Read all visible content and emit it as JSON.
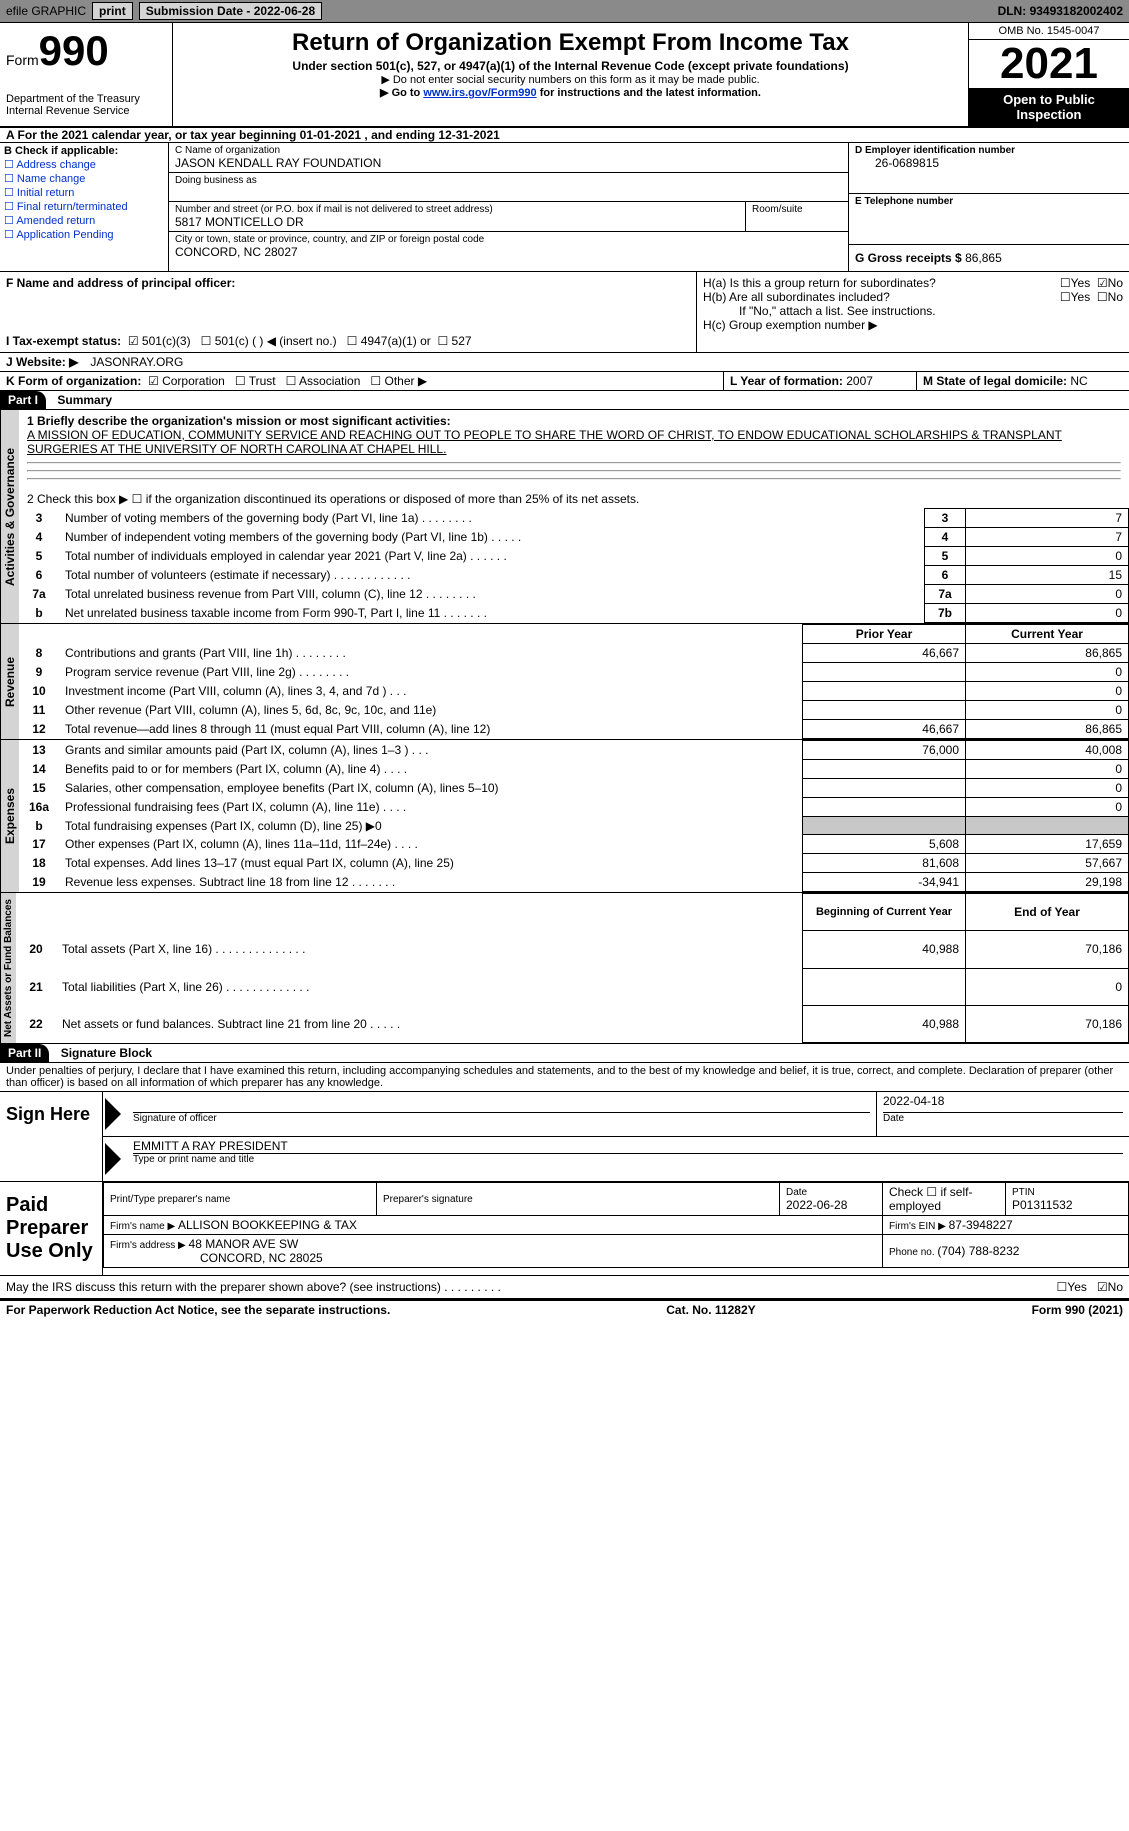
{
  "topbar": {
    "efile": "efile GRAPHIC",
    "print": "print",
    "submission_label": "Submission Date - ",
    "submission_date": "2022-06-28",
    "dln_label": "DLN: ",
    "dln": "93493182002402"
  },
  "header": {
    "form_label": "Form",
    "form_number": "990",
    "dept": "Department of the Treasury",
    "irs": "Internal Revenue Service",
    "title": "Return of Organization Exempt From Income Tax",
    "subtitle": "Under section 501(c), 527, or 4947(a)(1) of the Internal Revenue Code (except private foundations)",
    "note1": "▶ Do not enter social security numbers on this form as it may be made public.",
    "note2_pre": "▶ Go to ",
    "note2_link": "www.irs.gov/Form990",
    "note2_post": " for instructions and the latest information.",
    "omb": "OMB No. 1545-0047",
    "year": "2021",
    "inspect": "Open to Public Inspection"
  },
  "sectionA": {
    "text": "A For the 2021 calendar year, or tax year beginning ",
    "begin": "01-01-2021",
    "mid": " , and ending ",
    "end": "12-31-2021"
  },
  "blockB": {
    "title": "B Check if applicable:",
    "opts": [
      "Address change",
      "Name change",
      "Initial return",
      "Final return/terminated",
      "Amended return",
      "Application Pending"
    ]
  },
  "blockC": {
    "name_label": "C Name of organization",
    "name": "JASON KENDALL RAY FOUNDATION",
    "dba_label": "Doing business as",
    "addr_label": "Number and street (or P.O. box if mail is not delivered to street address)",
    "room_label": "Room/suite",
    "addr": "5817 MONTICELLO DR",
    "city_label": "City or town, state or province, country, and ZIP or foreign postal code",
    "city": "CONCORD, NC  28027"
  },
  "blockD": {
    "ein_label": "D Employer identification number",
    "ein": "26-0689815",
    "phone_label": "E Telephone number",
    "gross_label": "G Gross receipts $ ",
    "gross": "86,865"
  },
  "blockF": {
    "label": "F Name and address of principal officer:"
  },
  "blockH": {
    "a": "H(a)  Is this a group return for subordinates?",
    "b": "H(b)  Are all subordinates included?",
    "b_note": "If \"No,\" attach a list. See instructions.",
    "c": "H(c)  Group exemption number ▶",
    "yes": "Yes",
    "no": "No"
  },
  "taxexempt": {
    "label": "I   Tax-exempt status:",
    "opt1": "501(c)(3)",
    "opt2": "501(c) (  ) ◀ (insert no.)",
    "opt3": "4947(a)(1) or",
    "opt4": "527"
  },
  "website": {
    "label": "J   Website: ▶",
    "value": "JASONRAY.ORG"
  },
  "blockK": {
    "label": "K Form of organization:",
    "corp": "Corporation",
    "trust": "Trust",
    "assoc": "Association",
    "other": "Other ▶"
  },
  "blockL": {
    "label": "L Year of formation: ",
    "value": "2007"
  },
  "blockM": {
    "label": "M State of legal domicile: ",
    "value": "NC"
  },
  "part1": {
    "hdr": "Part I",
    "title": "Summary",
    "line1_label": "1  Briefly describe the organization's mission or most significant activities:",
    "mission": "A MISSION OF EDUCATION, COMMUNITY SERVICE AND REACHING OUT TO PEOPLE TO SHARE THE WORD OF CHRIST, TO ENDOW EDUCATIONAL SCHOLARSHIPS & TRANSPLANT SURGERIES AT THE UNIVERSITY OF NORTH CAROLINA AT CHAPEL HILL.",
    "line2": "2   Check this box ▶ ☐ if the organization discontinued its operations or disposed of more than 25% of its net assets.",
    "rows_top": [
      {
        "n": "3",
        "d": "Number of voting members of the governing body (Part VI, line 1a)   .    .    .    .    .    .    .    .",
        "b": "3",
        "v": "7"
      },
      {
        "n": "4",
        "d": "Number of independent voting members of the governing body (Part VI, line 1b)   .    .    .    .    .",
        "b": "4",
        "v": "7"
      },
      {
        "n": "5",
        "d": "Total number of individuals employed in calendar year 2021 (Part V, line 2a)   .    .    .    .    .    .",
        "b": "5",
        "v": "0"
      },
      {
        "n": "6",
        "d": "Total number of volunteers (estimate if necessary)    .    .    .    .    .    .    .    .    .    .    .    .",
        "b": "6",
        "v": "15"
      },
      {
        "n": "7a",
        "d": "Total unrelated business revenue from Part VIII, column (C), line 12   .    .    .    .    .    .    .    .",
        "b": "7a",
        "v": "0"
      },
      {
        "n": "b",
        "d": "Net unrelated business taxable income from Form 990-T, Part I, line 11   .    .    .    .    .    .    .",
        "b": "7b",
        "v": "0"
      }
    ],
    "prior_year": "Prior Year",
    "current_year": "Current Year",
    "revenue_rows": [
      {
        "n": "8",
        "d": "Contributions and grants (Part VIII, line 1h)   .    .    .    .    .    .    .    .",
        "py": "46,667",
        "cy": "86,865"
      },
      {
        "n": "9",
        "d": "Program service revenue (Part VIII, line 2g)   .    .    .    .    .    .    .    .",
        "py": "",
        "cy": "0"
      },
      {
        "n": "10",
        "d": "Investment income (Part VIII, column (A), lines 3, 4, and 7d )   .    .    .",
        "py": "",
        "cy": "0"
      },
      {
        "n": "11",
        "d": "Other revenue (Part VIII, column (A), lines 5, 6d, 8c, 9c, 10c, and 11e)",
        "py": "",
        "cy": "0"
      },
      {
        "n": "12",
        "d": "Total revenue—add lines 8 through 11 (must equal Part VIII, column (A), line 12)",
        "py": "46,667",
        "cy": "86,865"
      }
    ],
    "expense_rows": [
      {
        "n": "13",
        "d": "Grants and similar amounts paid (Part IX, column (A), lines 1–3 )  .   .   .",
        "py": "76,000",
        "cy": "40,008"
      },
      {
        "n": "14",
        "d": "Benefits paid to or for members (Part IX, column (A), line 4)  .   .   .   .",
        "py": "",
        "cy": "0"
      },
      {
        "n": "15",
        "d": "Salaries, other compensation, employee benefits (Part IX, column (A), lines 5–10)",
        "py": "",
        "cy": "0"
      },
      {
        "n": "16a",
        "d": "Professional fundraising fees (Part IX, column (A), line 11e)   .   .   .   .",
        "py": "",
        "cy": "0"
      },
      {
        "n": "b",
        "d": "Total fundraising expenses (Part IX, column (D), line 25) ▶0",
        "py": "shade",
        "cy": "shade"
      },
      {
        "n": "17",
        "d": "Other expenses (Part IX, column (A), lines 11a–11d, 11f–24e)   .   .   .   .",
        "py": "5,608",
        "cy": "17,659"
      },
      {
        "n": "18",
        "d": "Total expenses. Add lines 13–17 (must equal Part IX, column (A), line 25)",
        "py": "81,608",
        "cy": "57,667"
      },
      {
        "n": "19",
        "d": "Revenue less expenses. Subtract line 18 from line 12   .   .   .   .   .   .   .",
        "py": "-34,941",
        "cy": "29,198"
      }
    ],
    "boy": "Beginning of Current Year",
    "eoy": "End of Year",
    "net_rows": [
      {
        "n": "20",
        "d": "Total assets (Part X, line 16)  .   .   .   .   .   .   .   .   .   .   .   .   .   .",
        "py": "40,988",
        "cy": "70,186"
      },
      {
        "n": "21",
        "d": "Total liabilities (Part X, line 26)   .   .   .   .   .   .   .   .   .   .   .   .   .",
        "py": "",
        "cy": "0"
      },
      {
        "n": "22",
        "d": "Net assets or fund balances. Subtract line 21 from line 20   .   .   .   .   .",
        "py": "40,988",
        "cy": "70,186"
      }
    ],
    "tab_ag": "Activities & Governance",
    "tab_rev": "Revenue",
    "tab_exp": "Expenses",
    "tab_net": "Net Assets or Fund Balances"
  },
  "part2": {
    "hdr": "Part II",
    "title": "Signature Block",
    "perjury": "Under penalties of perjury, I declare that I have examined this return, including accompanying schedules and statements, and to the best of my knowledge and belief, it is true, correct, and complete. Declaration of preparer (other than officer) is based on all information of which preparer has any knowledge.",
    "sign_here": "Sign Here",
    "sig_officer": "Signature of officer",
    "sig_date": "2022-04-18",
    "date_label": "Date",
    "officer_name": "EMMITT A RAY  PRESIDENT",
    "type_name": "Type or print name and title",
    "paid": "Paid Preparer Use Only",
    "print_name_label": "Print/Type preparer's name",
    "prep_sig_label": "Preparer's signature",
    "prep_date_label": "Date",
    "prep_date": "2022-06-28",
    "check_if": "Check ☐ if self-employed",
    "ptin_label": "PTIN",
    "ptin": "P01311532",
    "firm_name_label": "Firm's name    ▶ ",
    "firm_name": "ALLISON BOOKKEEPING & TAX",
    "firm_ein_label": "Firm's EIN ▶ ",
    "firm_ein": "87-3948227",
    "firm_addr_label": "Firm's address ▶ ",
    "firm_addr1": "48 MANOR AVE SW",
    "firm_addr2": "CONCORD, NC  28025",
    "firm_phone_label": "Phone no. ",
    "firm_phone": "(704) 788-8232",
    "discuss": "May the IRS discuss this return with the preparer shown above? (see instructions)   .    .    .    .    .    .    .    .    ."
  },
  "footer": {
    "pra": "For Paperwork Reduction Act Notice, see the separate instructions.",
    "cat": "Cat. No. 11282Y",
    "form": "Form 990 (2021)"
  }
}
